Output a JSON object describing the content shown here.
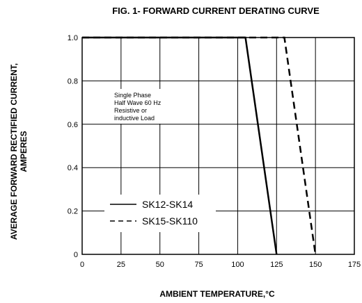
{
  "chart_data": {
    "type": "line",
    "title": "FIG. 1- FORWARD CURRENT DERATING CURVE",
    "xlabel": "AMBIENT TEMPERATURE,°C",
    "ylabel_line1": "AVERAGE FORWARD RECTIFIED CURRENT,",
    "ylabel_line2": "AMPERES",
    "xlim": [
      0,
      175
    ],
    "ylim": [
      0,
      1.0
    ],
    "x_ticks": [
      "0",
      "25",
      "50",
      "75",
      "100",
      "125",
      "150",
      "175"
    ],
    "y_ticks": [
      "0",
      "0.2",
      "0.4",
      "0.6",
      "0.8",
      "1.0"
    ],
    "grid": true,
    "annotation": [
      "Single Phase",
      "Half Wave 60 Hz",
      "Resistive or",
      "inductive Load"
    ],
    "series": [
      {
        "name": "SK12-SK14",
        "style": "solid",
        "x": [
          0,
          105,
          125
        ],
        "y": [
          1.0,
          1.0,
          0
        ]
      },
      {
        "name": "SK15-SK110",
        "style": "dashed",
        "x": [
          0,
          130,
          150
        ],
        "y": [
          1.0,
          1.0,
          0
        ]
      }
    ]
  }
}
